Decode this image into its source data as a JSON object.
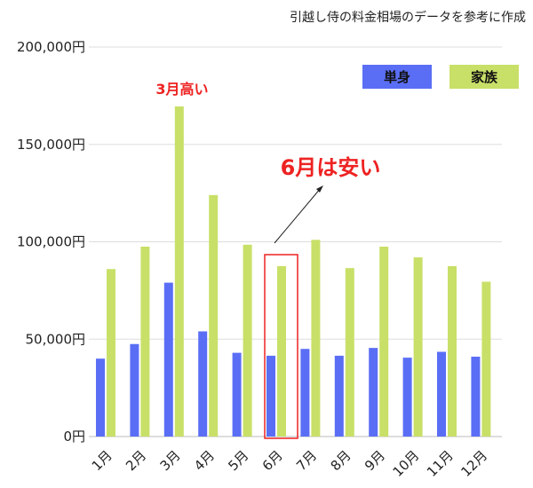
{
  "chart_data": {
    "type": "bar",
    "title": "引越し侍の料金相場のデータを参考に作成",
    "categories": [
      "1月",
      "2月",
      "3月",
      "4月",
      "5月",
      "6月",
      "7月",
      "8月",
      "9月",
      "10月",
      "11月",
      "12月"
    ],
    "series": [
      {
        "name": "単身",
        "color": "#5a6ef5",
        "values": [
          40000,
          47500,
          79000,
          54000,
          43000,
          41500,
          45000,
          41500,
          45500,
          40500,
          43500,
          41000
        ]
      },
      {
        "name": "家族",
        "color": "#c8e068",
        "values": [
          86000,
          97500,
          169500,
          124000,
          98500,
          87500,
          101000,
          86500,
          97500,
          92000,
          87500,
          79500
        ]
      }
    ],
    "yticks": [
      "0円",
      "50,000円",
      "100,000円",
      "150,000円",
      "200,000円"
    ],
    "ylim": [
      0,
      200000
    ],
    "grid": true,
    "legend_position": "top-right",
    "annotations": {
      "march": {
        "text": "3月高い",
        "color": "#ee2222"
      },
      "june": {
        "text": "6月は安い",
        "color": "#ee2222"
      }
    }
  }
}
